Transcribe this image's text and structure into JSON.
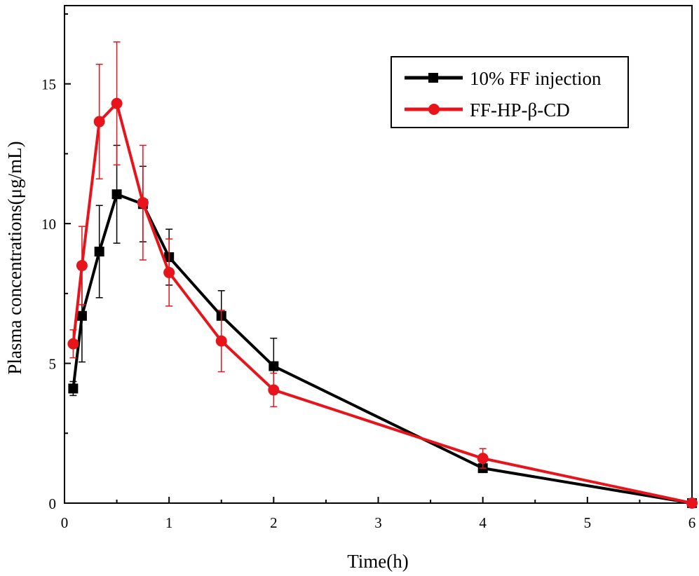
{
  "chart_data": {
    "type": "line",
    "title": "",
    "xlabel": "Time(h)",
    "ylabel": "Plasma concentrations(μg/mL)",
    "xlim": [
      0,
      6
    ],
    "ylim": [
      0,
      17.8
    ],
    "xticks": [
      0,
      1,
      2,
      3,
      4,
      5,
      6
    ],
    "yticks": [
      0,
      5,
      10,
      15
    ],
    "grid": false,
    "legend_position": "top-right",
    "series": [
      {
        "name": "10% FF injection",
        "color": "#000000",
        "marker": "square",
        "x": [
          0.083,
          0.167,
          0.333,
          0.5,
          0.75,
          1,
          1.5,
          2,
          4,
          6
        ],
        "y": [
          4.1,
          6.7,
          9.0,
          11.05,
          10.7,
          8.8,
          6.7,
          4.9,
          1.25,
          0.0
        ],
        "err": [
          0.25,
          1.65,
          1.65,
          1.75,
          1.35,
          1.0,
          0.9,
          1.0,
          0.15,
          0.0
        ]
      },
      {
        "name": "FF-HP-β-CD",
        "color": "#e8141b",
        "marker": "circle",
        "x": [
          0.083,
          0.167,
          0.333,
          0.5,
          0.75,
          1,
          1.5,
          2,
          4,
          6
        ],
        "y": [
          5.7,
          8.5,
          13.65,
          14.3,
          10.75,
          8.25,
          5.8,
          4.05,
          1.6,
          0.0
        ],
        "err": [
          0.5,
          1.4,
          2.05,
          2.2,
          2.05,
          1.2,
          1.1,
          0.6,
          0.35,
          0.0
        ]
      }
    ]
  }
}
